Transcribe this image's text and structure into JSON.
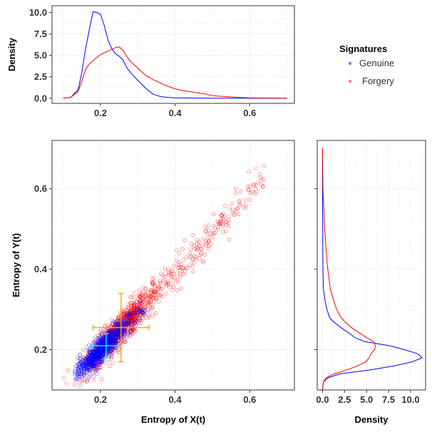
{
  "colors": {
    "genuine": "#0000ff",
    "forgery": "#ff0000",
    "genuine_mean_bar": "#00ffff",
    "forgery_mean_bar": "#ffa500",
    "grid": "#e6e6e6",
    "frame": "#333333"
  },
  "legend": {
    "title": "Signatures",
    "items": [
      {
        "label": "Genuine",
        "color": "#7b7bff"
      },
      {
        "label": "Forgery",
        "color": "#ff7b7b"
      }
    ]
  },
  "chart_data": [
    {
      "id": "top-density",
      "type": "line",
      "xlabel": "",
      "ylabel": "Density",
      "xlim": [
        0.07,
        0.72
      ],
      "ylim": [
        -0.6,
        10.8
      ],
      "xticks": [
        0.2,
        0.4,
        0.6
      ],
      "xtick_labels": [
        "0.2",
        "0.4",
        "0.6"
      ],
      "yticks": [
        0.0,
        2.5,
        5.0,
        7.5,
        10.0
      ],
      "ytick_labels": [
        "0.0",
        "2.5",
        "5.0",
        "7.5",
        "10.0"
      ],
      "grid": true,
      "series": [
        {
          "name": "Genuine",
          "x": [
            0.1,
            0.12,
            0.14,
            0.15,
            0.16,
            0.17,
            0.18,
            0.19,
            0.2,
            0.21,
            0.22,
            0.23,
            0.24,
            0.25,
            0.26,
            0.27,
            0.28,
            0.3,
            0.32,
            0.34,
            0.36,
            0.38,
            0.4,
            0.45,
            0.5,
            0.6,
            0.7
          ],
          "y": [
            0.0,
            0.1,
            1.0,
            3.0,
            5.8,
            8.0,
            10.1,
            10.0,
            9.8,
            8.5,
            6.8,
            5.8,
            5.2,
            4.9,
            4.5,
            3.6,
            3.0,
            2.1,
            1.2,
            0.5,
            0.2,
            0.1,
            0.05,
            0.02,
            0.01,
            0.0,
            0.0
          ]
        },
        {
          "name": "Forgery",
          "x": [
            0.1,
            0.12,
            0.14,
            0.15,
            0.16,
            0.17,
            0.18,
            0.2,
            0.22,
            0.24,
            0.25,
            0.26,
            0.27,
            0.28,
            0.3,
            0.32,
            0.34,
            0.36,
            0.38,
            0.4,
            0.42,
            0.45,
            0.48,
            0.5,
            0.55,
            0.6,
            0.65,
            0.7
          ],
          "y": [
            0.0,
            0.1,
            0.8,
            2.0,
            3.4,
            4.0,
            4.4,
            5.1,
            5.5,
            5.9,
            6.0,
            5.6,
            4.9,
            4.3,
            3.5,
            2.7,
            2.2,
            1.8,
            1.4,
            1.1,
            0.9,
            0.7,
            0.5,
            0.3,
            0.15,
            0.05,
            0.02,
            0.0
          ]
        }
      ]
    },
    {
      "id": "scatter",
      "type": "scatter",
      "xlabel": "Entropy of X(t)",
      "ylabel": "Entropy of Y(t)",
      "xlim": [
        0.07,
        0.72
      ],
      "ylim": [
        0.1,
        0.72
      ],
      "xticks": [
        0.2,
        0.4,
        0.6
      ],
      "xtick_labels": [
        "0.2",
        "0.4",
        "0.6"
      ],
      "yticks": [
        0.2,
        0.4,
        0.6
      ],
      "ytick_labels": [
        "0.2",
        "0.4",
        "0.6"
      ],
      "grid": true,
      "series": [
        {
          "name": "Genuine",
          "n": 900,
          "x_range": [
            0.13,
            0.35
          ],
          "y_range": [
            0.14,
            0.33
          ],
          "slope": 0.9,
          "intercept": 0.02,
          "spread": 0.015,
          "mean": [
            0.215,
            0.21
          ],
          "err_x": [
            0.18,
            0.25
          ],
          "err_y": [
            0.18,
            0.24
          ]
        },
        {
          "name": "Forgery",
          "n": 1200,
          "x_range": [
            0.1,
            0.66
          ],
          "y_range": [
            0.13,
            0.68
          ],
          "slope": 0.97,
          "intercept": 0.005,
          "spread": 0.02,
          "mean": [
            0.255,
            0.255
          ],
          "err_x": [
            0.18,
            0.33
          ],
          "err_y": [
            0.17,
            0.34
          ]
        }
      ]
    },
    {
      "id": "right-density",
      "type": "line",
      "orientation": "horizontal",
      "xlabel": "Density",
      "ylabel": "",
      "xlim": [
        -0.6,
        11.7
      ],
      "ylim": [
        0.1,
        0.72
      ],
      "xticks": [
        0.0,
        2.5,
        5.0,
        7.5,
        10.0
      ],
      "xtick_labels": [
        "0.0",
        "2.5",
        "5.0",
        "7.5",
        "10.0"
      ],
      "grid": true,
      "series": [
        {
          "name": "Genuine",
          "y": [
            0.1,
            0.12,
            0.13,
            0.14,
            0.15,
            0.16,
            0.17,
            0.18,
            0.19,
            0.2,
            0.21,
            0.22,
            0.23,
            0.24,
            0.25,
            0.26,
            0.27,
            0.28,
            0.3,
            0.32,
            0.35,
            0.4,
            0.5,
            0.6,
            0.7
          ],
          "x": [
            0.0,
            0.1,
            0.6,
            2.0,
            5.5,
            8.2,
            10.2,
            11.3,
            10.8,
            9.3,
            7.6,
            4.8,
            3.7,
            3.1,
            2.4,
            1.8,
            1.2,
            0.8,
            0.5,
            0.3,
            0.1,
            0.05,
            0.02,
            0.0,
            0.0
          ]
        },
        {
          "name": "Forgery",
          "y": [
            0.1,
            0.12,
            0.13,
            0.14,
            0.15,
            0.16,
            0.17,
            0.18,
            0.19,
            0.2,
            0.21,
            0.22,
            0.23,
            0.24,
            0.25,
            0.26,
            0.27,
            0.28,
            0.3,
            0.32,
            0.35,
            0.4,
            0.45,
            0.5,
            0.6,
            0.7
          ],
          "x": [
            0.0,
            0.1,
            0.4,
            1.3,
            2.8,
            4.0,
            4.9,
            5.3,
            5.5,
            5.9,
            6.0,
            5.8,
            5.0,
            4.3,
            3.6,
            3.0,
            2.5,
            2.1,
            1.6,
            1.3,
            0.9,
            0.6,
            0.4,
            0.25,
            0.05,
            0.0
          ]
        }
      ]
    }
  ]
}
